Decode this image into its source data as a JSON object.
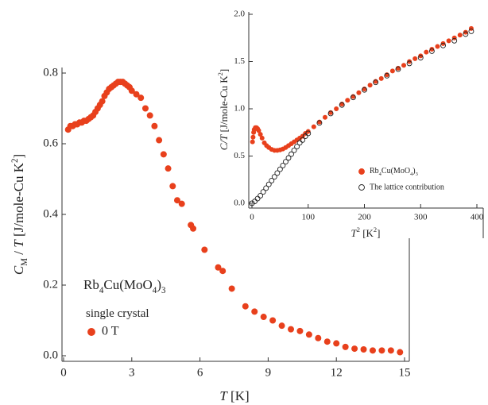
{
  "chart_data": [
    {
      "type": "scatter",
      "x_label": [
        {
          "text": "T",
          "style": "i"
        },
        " [K]"
      ],
      "y_label": [
        {
          "text": "C",
          "style": "i"
        },
        {
          "text": "M",
          "style": "sub"
        },
        " / ",
        {
          "text": "T",
          "style": "i"
        },
        "  [J/mole-Cu K",
        {
          "text": "2",
          "style": "sup"
        },
        "]"
      ],
      "annotations": [
        [
          "Rb",
          {
            "text": "4",
            "style": "sub"
          },
          "Cu(MoO",
          {
            "text": "4",
            "style": "sub"
          },
          ")",
          {
            "text": "3",
            "style": "sub"
          }
        ],
        [
          "single crystal"
        ]
      ],
      "xlim": [
        0,
        15
      ],
      "xticks": [
        0,
        3,
        6,
        9,
        12,
        15
      ],
      "ylim": [
        0,
        0.8
      ],
      "yticks": [
        {
          "value": 0,
          "label": "0.0"
        },
        0.2,
        0.4,
        0.6,
        0.8
      ],
      "series": [
        {
          "name": "0 T",
          "color": "#e8401c",
          "x": [
            0.2,
            0.3,
            0.4,
            0.5,
            0.6,
            0.7,
            0.8,
            0.9,
            1.0,
            1.1,
            1.2,
            1.3,
            1.4,
            1.5,
            1.6,
            1.7,
            1.8,
            1.9,
            2.0,
            2.1,
            2.2,
            2.3,
            2.4,
            2.5,
            2.6,
            2.7,
            2.8,
            2.9,
            3.0,
            3.2,
            3.4,
            3.6,
            3.8,
            4.0,
            4.2,
            4.4,
            4.6,
            4.8,
            5.0,
            5.2,
            5.6,
            5.7,
            6.2,
            6.8,
            7.0,
            7.4,
            8.0,
            8.4,
            8.8,
            9.2,
            9.6,
            10.0,
            10.4,
            10.8,
            11.2,
            11.6,
            12.0,
            12.4,
            12.8,
            13.2,
            13.6,
            14.0,
            14.4,
            14.8
          ],
          "values": [
            0.64,
            0.65,
            0.65,
            0.655,
            0.655,
            0.66,
            0.66,
            0.665,
            0.665,
            0.67,
            0.675,
            0.68,
            0.69,
            0.7,
            0.71,
            0.72,
            0.735,
            0.745,
            0.755,
            0.76,
            0.765,
            0.77,
            0.775,
            0.775,
            0.775,
            0.77,
            0.765,
            0.76,
            0.75,
            0.74,
            0.73,
            0.7,
            0.68,
            0.65,
            0.61,
            0.57,
            0.53,
            0.48,
            0.44,
            0.43,
            0.37,
            0.36,
            0.3,
            0.25,
            0.24,
            0.19,
            0.14,
            0.125,
            0.11,
            0.1,
            0.085,
            0.075,
            0.07,
            0.06,
            0.05,
            0.04,
            0.035,
            0.025,
            0.02,
            0.018,
            0.015,
            0.015,
            0.015,
            0.01
          ]
        }
      ]
    },
    {
      "type": "scatter",
      "x_label": [
        {
          "text": "T",
          "style": "i"
        },
        {
          "text": "2",
          "style": "sup"
        },
        " [K",
        {
          "text": "2",
          "style": "sup"
        },
        "]"
      ],
      "y_label": [
        {
          "text": "C/T",
          "style": "i"
        },
        " [J/mole-Cu K",
        {
          "text": "2",
          "style": "sup"
        },
        "]"
      ],
      "xlim": [
        0,
        400
      ],
      "xticks": [
        0,
        100,
        200,
        300,
        400
      ],
      "ylim": [
        0,
        2
      ],
      "yticks": [
        {
          "value": 0,
          "label": "0.0"
        },
        0.5,
        {
          "value": 1,
          "label": "1.0"
        },
        1.5,
        {
          "value": 2,
          "label": "2.0"
        }
      ],
      "series": [
        {
          "name": [
            "Rb",
            {
              "text": "4",
              "style": "sub"
            },
            "Cu(MoO",
            {
              "text": "4",
              "style": "sub"
            },
            ")",
            {
              "text": "3",
              "style": "sub"
            }
          ],
          "color": "#e8401c",
          "marker": "filled",
          "x": [
            1,
            2,
            3,
            4,
            6,
            8,
            10,
            12,
            15,
            18,
            22,
            26,
            30,
            35,
            40,
            45,
            50,
            55,
            60,
            65,
            70,
            75,
            80,
            85,
            90,
            95,
            100,
            110,
            120,
            130,
            140,
            150,
            160,
            170,
            180,
            190,
            200,
            210,
            220,
            230,
            240,
            250,
            260,
            270,
            280,
            290,
            300,
            310,
            320,
            330,
            340,
            350,
            360,
            370,
            380,
            390
          ],
          "values": [
            0.65,
            0.7,
            0.75,
            0.78,
            0.8,
            0.8,
            0.79,
            0.77,
            0.73,
            0.69,
            0.64,
            0.61,
            0.59,
            0.57,
            0.56,
            0.56,
            0.565,
            0.575,
            0.59,
            0.61,
            0.63,
            0.65,
            0.67,
            0.69,
            0.71,
            0.74,
            0.76,
            0.81,
            0.86,
            0.91,
            0.96,
            1.0,
            1.05,
            1.09,
            1.13,
            1.17,
            1.21,
            1.25,
            1.29,
            1.32,
            1.36,
            1.4,
            1.43,
            1.46,
            1.5,
            1.53,
            1.56,
            1.6,
            1.63,
            1.66,
            1.69,
            1.72,
            1.75,
            1.78,
            1.81,
            1.85
          ]
        },
        {
          "name": "The lattice contribution",
          "color": "#222222",
          "marker": "open",
          "x": [
            0,
            5,
            10,
            15,
            20,
            25,
            30,
            35,
            40,
            45,
            50,
            55,
            60,
            65,
            70,
            75,
            80,
            85,
            90,
            95,
            100,
            120,
            140,
            160,
            180,
            200,
            220,
            240,
            260,
            280,
            300,
            320,
            340,
            360,
            380,
            390
          ],
          "values": [
            0,
            0.02,
            0.05,
            0.08,
            0.12,
            0.16,
            0.2,
            0.24,
            0.28,
            0.32,
            0.36,
            0.4,
            0.44,
            0.48,
            0.52,
            0.56,
            0.6,
            0.64,
            0.67,
            0.71,
            0.74,
            0.85,
            0.95,
            1.04,
            1.12,
            1.2,
            1.28,
            1.35,
            1.42,
            1.48,
            1.54,
            1.61,
            1.67,
            1.72,
            1.79,
            1.82
          ]
        }
      ]
    }
  ]
}
